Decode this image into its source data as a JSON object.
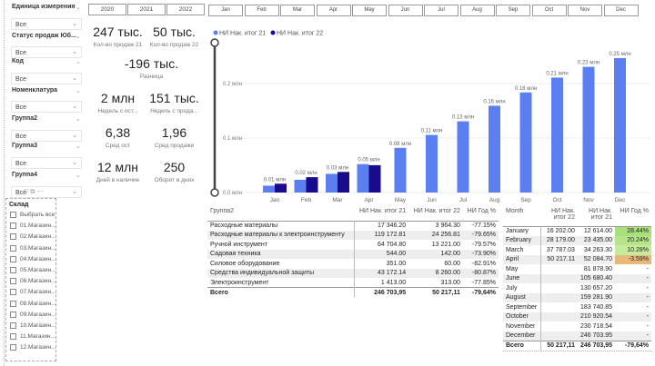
{
  "filters": [
    {
      "label": "Единица измерения",
      "value": "Все"
    },
    {
      "label": "Статус продаж Юб...",
      "value": "Все"
    },
    {
      "label": "Код",
      "value": "Все"
    },
    {
      "label": "Номенклатура",
      "value": "Все"
    },
    {
      "label": "Группа2",
      "value": "Все"
    },
    {
      "label": "Группа3",
      "value": "Все"
    },
    {
      "label": "Группа4",
      "value": "Все"
    }
  ],
  "warehouse": {
    "title": "Склад",
    "items": [
      "Выбрать все",
      "01.Магазин...",
      "02.Магазин...",
      "03.Магазин...",
      "04.Магазин...",
      "05.Магазин...",
      "06.Магазин...",
      "07.Магазин...",
      "08.Магазин...",
      "09.Магазин...",
      "10.Магазин...",
      "11.Магазин...",
      "12.Магазин..."
    ]
  },
  "years": [
    "2020",
    "2021",
    "2022"
  ],
  "kpis": {
    "sales21": {
      "value": "247 тыс.",
      "label": "Кол-во продаж 21"
    },
    "sales22": {
      "value": "50 тыс.",
      "label": "Кол-во продаж 22"
    },
    "diff": {
      "value": "-196 тыс.",
      "label": "Разница"
    },
    "weeks_stock": {
      "value": "2 млн",
      "label": "Недель с ост..."
    },
    "weeks_sales": {
      "value": "151 тыс.",
      "label": "Недель с прода..."
    },
    "avg_stock": {
      "value": "6,38",
      "label": "Сред ост"
    },
    "avg_sales": {
      "value": "1,96",
      "label": "Сред продажи"
    },
    "days_stock": {
      "value": "12 млн",
      "label": "Дней в наличие"
    },
    "turnover": {
      "value": "250",
      "label": "Оборот в днях"
    }
  },
  "months": [
    "Jan",
    "Feb",
    "Mar",
    "Apr",
    "May",
    "Jun",
    "Jul",
    "Aug",
    "Sep",
    "Oct",
    "Nov",
    "Dec"
  ],
  "chart_data": {
    "type": "bar",
    "categories": [
      "Jan",
      "Feb",
      "Mar",
      "Apr",
      "May",
      "Jun",
      "Jul",
      "Aug",
      "Sep",
      "Oct",
      "Nov",
      "Dec"
    ],
    "series": [
      {
        "name": "НИ Нак. итог 21",
        "color": "#5b7ff0",
        "values": [
          0.0126,
          0.0234,
          0.0343,
          0.0521,
          0.0819,
          0.1057,
          0.1307,
          0.1593,
          0.1837,
          0.2109,
          0.2307,
          0.2467
        ]
      },
      {
        "name": "НИ Нак. итог 22",
        "color": "#1a0b8c",
        "values": [
          0.0162,
          0.0282,
          0.0378,
          0.0502,
          null,
          null,
          null,
          null,
          null,
          null,
          null,
          null
        ]
      }
    ],
    "data_labels": [
      "0.01 млн",
      "0.02 млн",
      "0.03 млн",
      "0.05 млн",
      "0.08 млн",
      "0.11 млн",
      "0.13 млн",
      "0.16 млн",
      "0.18 млн",
      "0.21 млн",
      "0.23 млн",
      "0.25 млн"
    ],
    "yticks": [
      {
        "v": 0,
        "label": "0.0 млн"
      },
      {
        "v": 0.1,
        "label": "0.1 млн"
      },
      {
        "v": 0.2,
        "label": "0.2 млн"
      }
    ],
    "ylim": [
      0,
      0.26
    ],
    "legend": "top-left",
    "grid": true
  },
  "table1": {
    "headers": [
      "Группа2",
      "НИ Нак. итог 21",
      "НИ Нак. итог 22",
      "НИ Год %"
    ],
    "rows": [
      [
        "Расходные материалы",
        "17 346.20",
        "3 964.30",
        "-77.15%"
      ],
      [
        "Расходные материалы к электроинструменту",
        "119 172.81",
        "24 256.81",
        "-79.65%"
      ],
      [
        "Ручной инструмент",
        "64 704.80",
        "13 221.00",
        "-79.57%"
      ],
      [
        "Садовая техника",
        "544.00",
        "142.00",
        "-73.90%"
      ],
      [
        "Силовое оборудование",
        "351.00",
        "60.00",
        "-82.91%"
      ],
      [
        "Средства индивидуальной защиты",
        "43 172.14",
        "8 260.00",
        "-80.87%"
      ],
      [
        "Электроинструмент",
        "1 413.00",
        "313.00",
        "-77.85%"
      ]
    ],
    "total": [
      "Всего",
      "246 703,95",
      "50 217,11",
      "-79,64%"
    ]
  },
  "table2": {
    "headers": [
      "Month",
      "НИ Нак. итог 22",
      "НИ Нак. итог 21",
      "НИ Год %"
    ],
    "rows": [
      [
        "January",
        "16 202.00",
        "12 614.00",
        "28.44%"
      ],
      [
        "February",
        "28 179.00",
        "23 435.00",
        "20.24%"
      ],
      [
        "March",
        "37 787.03",
        "34 263.30",
        "10.28%"
      ],
      [
        "April",
        "50 217.11",
        "52 084.70",
        "-3.59%"
      ],
      [
        "May",
        "",
        "81 878.90",
        "-"
      ],
      [
        "June",
        "",
        "105 680.40",
        "-"
      ],
      [
        "July",
        "",
        "130 657.20",
        "-"
      ],
      [
        "August",
        "",
        "159 281.90",
        "-"
      ],
      [
        "September",
        "",
        "183 740.85",
        "-"
      ],
      [
        "October",
        "",
        "210 920.54",
        "-"
      ],
      [
        "November",
        "",
        "230 718.54",
        "-"
      ],
      [
        "December",
        "",
        "246 703.95",
        "-"
      ]
    ],
    "total": [
      "Всего",
      "50 217,11",
      "246 703,95",
      "-79,64%"
    ],
    "pct_colors": [
      "#a8e07a",
      "#b5e48a",
      "#c7eb9c",
      "#e8b87a"
    ]
  }
}
